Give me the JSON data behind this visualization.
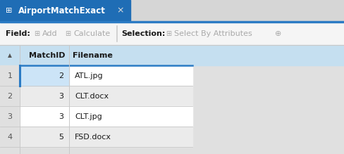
{
  "title_tab": "AirportMatchExact",
  "tab_bg_active": "#1f6db5",
  "tab_bar_bg": "#d6d6d6",
  "tab_text_color": "#ffffff",
  "toolbar_bg": "#f5f5f5",
  "overall_bg": "#e0e0e0",
  "header_bg": "#c5dff0",
  "header_text_color": "#1a1a1a",
  "col_headers": [
    "MatchID",
    "Filename"
  ],
  "row_nums": [
    1,
    2,
    3,
    4
  ],
  "match_ids": [
    2,
    3,
    3,
    5
  ],
  "filenames": [
    "ATL.jpg",
    "CLT.docx",
    "CLT.jpg",
    "FSD.docx"
  ],
  "row_bg_white": "#ffffff",
  "row_bg_gray": "#ebebeb",
  "row_selected_bg": "#cce4f7",
  "selected_row": 0,
  "grid_color": "#c8c8c8",
  "header_border_color": "#2b7bc4",
  "tab_border_color": "#2b7bc4",
  "fig_width": 4.88,
  "fig_height": 2.19,
  "dpi": 100
}
